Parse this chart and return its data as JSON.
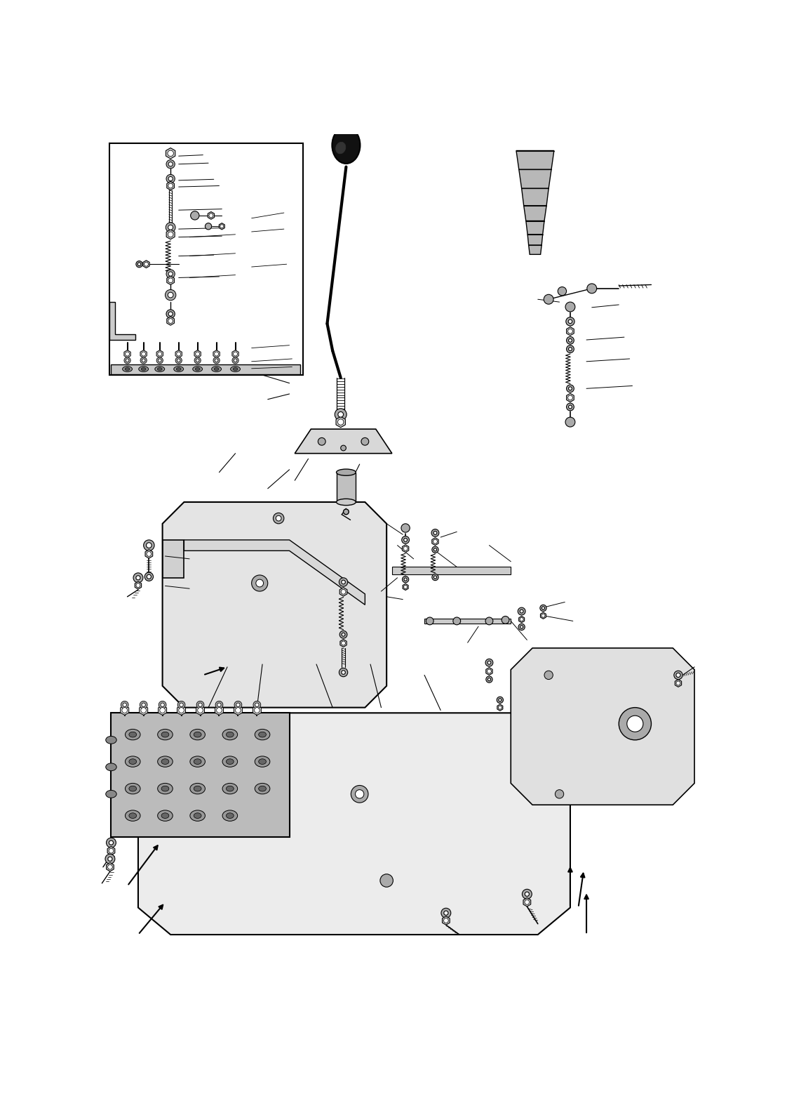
{
  "bg_color": "#ffffff",
  "fig_width": 11.22,
  "fig_height": 15.95,
  "dpi": 100,
  "line_color": "#000000",
  "gray_light": "#cccccc",
  "gray_mid": "#aaaaaa",
  "gray_dark": "#888888"
}
